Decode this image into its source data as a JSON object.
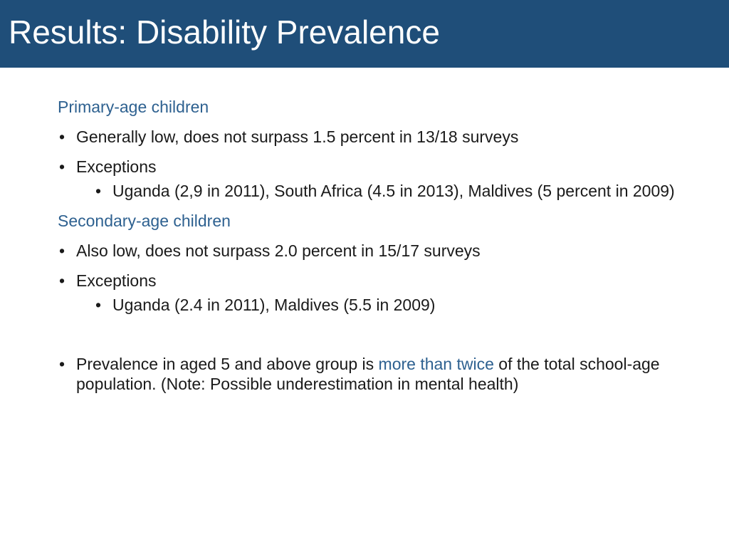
{
  "slide": {
    "title": "Results: Disability Prevalence",
    "primary": {
      "heading": "Primary-age children",
      "bullet1": "Generally low, does not surpass 1.5 percent in 13/18 surveys",
      "bullet2": "Exceptions",
      "sub1": "Uganda (2,9 in 2011), South Africa (4.5 in 2013), Maldives (5 percent in 2009)"
    },
    "secondary": {
      "heading": "Secondary-age children",
      "bullet1": "Also low, does not surpass 2.0 percent in 15/17 surveys",
      "bullet2": "Exceptions",
      "sub1": "Uganda (2.4 in 2011), Maldives (5.5 in 2009)"
    },
    "final": {
      "part1": "Prevalence in aged 5 and above group is ",
      "highlight": "more than twice",
      "part2": " of the total school-age population. (Note: Possible underestimation in mental health)"
    }
  }
}
